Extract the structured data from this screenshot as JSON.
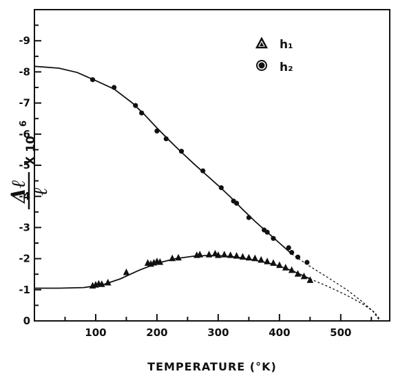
{
  "chart_data": {
    "type": "scatter",
    "title": "",
    "xlabel": "TEMPERATURE (°K)",
    "ylabel": {
      "symbol": "Δℓ",
      "denominator": "ℓ",
      "multiplier": "X 10",
      "exponent": "6"
    },
    "xlim": [
      0,
      580
    ],
    "ylim": [
      0,
      -10
    ],
    "x_ticks": [
      100,
      200,
      300,
      400,
      500
    ],
    "x_tick_labels": [
      "100",
      "200",
      "300",
      "400",
      "500"
    ],
    "y_ticks": [
      0,
      -1,
      -2,
      -3,
      -4,
      -5,
      -6,
      -7,
      -8,
      -9
    ],
    "y_tick_labels": [
      "0",
      "-1",
      "-2",
      "-3",
      "-4",
      "-5",
      "-6",
      "-7",
      "-8",
      "-9"
    ],
    "grid": false,
    "legend_position": "top-right",
    "series": [
      {
        "name": "h₁",
        "marker": "triangle",
        "points": [
          [
            95,
            -1.12
          ],
          [
            100,
            -1.15
          ],
          [
            105,
            -1.18
          ],
          [
            110,
            -1.17
          ],
          [
            120,
            -1.22
          ],
          [
            150,
            -1.55
          ],
          [
            185,
            -1.85
          ],
          [
            190,
            -1.82
          ],
          [
            195,
            -1.86
          ],
          [
            200,
            -1.9
          ],
          [
            205,
            -1.88
          ],
          [
            225,
            -2.0
          ],
          [
            235,
            -2.02
          ],
          [
            265,
            -2.1
          ],
          [
            270,
            -2.12
          ],
          [
            285,
            -2.12
          ],
          [
            295,
            -2.15
          ],
          [
            300,
            -2.1
          ],
          [
            310,
            -2.12
          ],
          [
            320,
            -2.1
          ],
          [
            330,
            -2.08
          ],
          [
            340,
            -2.05
          ],
          [
            350,
            -2.02
          ],
          [
            360,
            -2.0
          ],
          [
            370,
            -1.95
          ],
          [
            380,
            -1.9
          ],
          [
            390,
            -1.85
          ],
          [
            400,
            -1.78
          ],
          [
            410,
            -1.7
          ],
          [
            420,
            -1.62
          ],
          [
            430,
            -1.5
          ],
          [
            440,
            -1.42
          ],
          [
            450,
            -1.3
          ]
        ],
        "fit_solid": [
          [
            0,
            -1.05
          ],
          [
            40,
            -1.05
          ],
          [
            80,
            -1.07
          ],
          [
            110,
            -1.15
          ],
          [
            140,
            -1.35
          ],
          [
            170,
            -1.62
          ],
          [
            200,
            -1.85
          ],
          [
            230,
            -2.0
          ],
          [
            260,
            -2.08
          ],
          [
            280,
            -2.1
          ],
          [
            300,
            -2.1
          ],
          [
            330,
            -2.05
          ],
          [
            360,
            -1.95
          ],
          [
            390,
            -1.82
          ],
          [
            420,
            -1.62
          ],
          [
            450,
            -1.35
          ]
        ],
        "fit_dashed": [
          [
            450,
            -1.35
          ],
          [
            480,
            -1.1
          ],
          [
            510,
            -0.82
          ],
          [
            535,
            -0.55
          ],
          [
            555,
            -0.28
          ],
          [
            565,
            -0.02
          ]
        ]
      },
      {
        "name": "h₂",
        "marker": "filled-circle",
        "points": [
          [
            95,
            -7.75
          ],
          [
            130,
            -7.5
          ],
          [
            165,
            -6.92
          ],
          [
            175,
            -6.68
          ],
          [
            200,
            -6.1
          ],
          [
            215,
            -5.85
          ],
          [
            240,
            -5.45
          ],
          [
            275,
            -4.82
          ],
          [
            305,
            -4.28
          ],
          [
            325,
            -3.85
          ],
          [
            330,
            -3.78
          ],
          [
            350,
            -3.32
          ],
          [
            375,
            -2.92
          ],
          [
            380,
            -2.85
          ],
          [
            390,
            -2.65
          ],
          [
            415,
            -2.35
          ],
          [
            420,
            -2.2
          ],
          [
            430,
            -2.05
          ],
          [
            445,
            -1.88
          ]
        ],
        "fit_solid": [
          [
            0,
            -8.18
          ],
          [
            40,
            -8.12
          ],
          [
            70,
            -7.98
          ],
          [
            100,
            -7.72
          ],
          [
            130,
            -7.45
          ],
          [
            160,
            -7.0
          ],
          [
            180,
            -6.62
          ],
          [
            200,
            -6.2
          ],
          [
            220,
            -5.8
          ],
          [
            240,
            -5.42
          ],
          [
            260,
            -5.05
          ],
          [
            280,
            -4.7
          ],
          [
            300,
            -4.35
          ],
          [
            320,
            -3.98
          ],
          [
            340,
            -3.58
          ],
          [
            360,
            -3.2
          ],
          [
            380,
            -2.85
          ],
          [
            400,
            -2.5
          ],
          [
            420,
            -2.15
          ]
        ],
        "fit_dashed": [
          [
            420,
            -2.15
          ],
          [
            450,
            -1.75
          ],
          [
            480,
            -1.38
          ],
          [
            510,
            -1.0
          ],
          [
            535,
            -0.62
          ],
          [
            552,
            -0.32
          ],
          [
            562,
            -0.05
          ]
        ]
      }
    ]
  }
}
